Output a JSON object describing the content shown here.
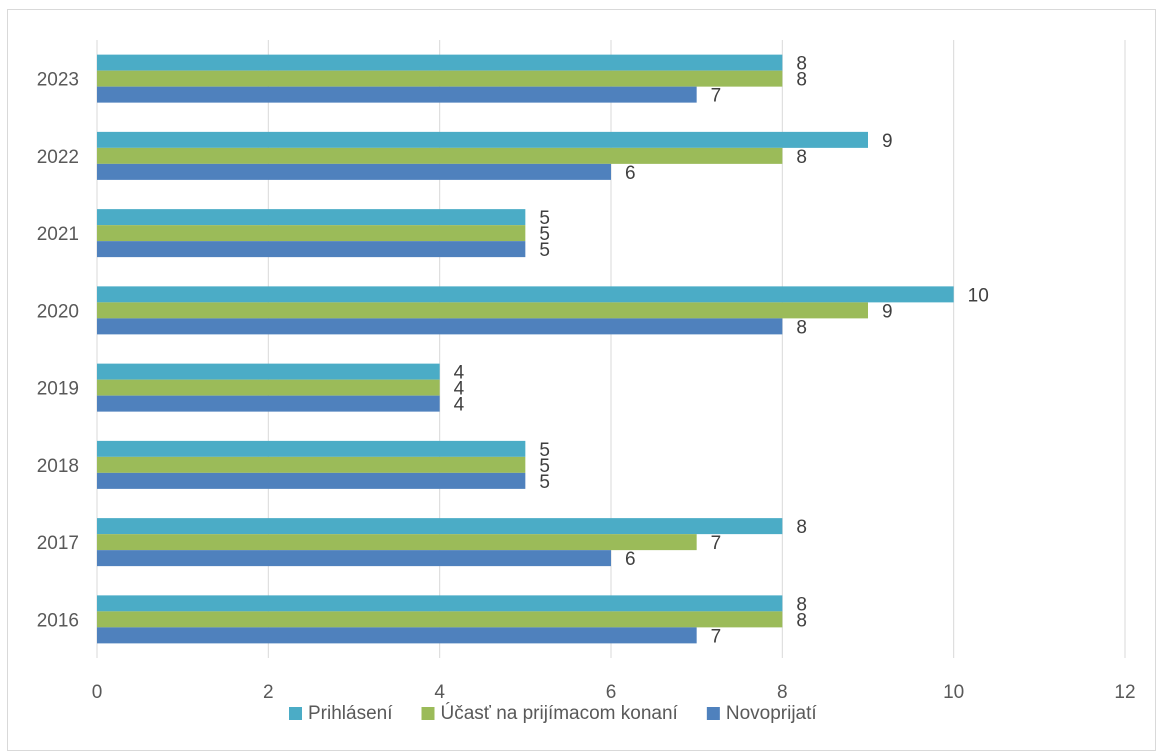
{
  "chart_data": {
    "type": "bar",
    "orientation": "horizontal",
    "categories": [
      "2016",
      "2017",
      "2018",
      "2019",
      "2020",
      "2021",
      "2022",
      "2023"
    ],
    "series": [
      {
        "name": "Prihlásení",
        "color": "#4bacc6",
        "values": [
          8,
          8,
          5,
          4,
          10,
          5,
          9,
          8
        ]
      },
      {
        "name": "Účasť na prijímacom konaní",
        "color": "#9bbb59",
        "values": [
          8,
          7,
          5,
          4,
          9,
          5,
          8,
          8
        ]
      },
      {
        "name": "Novoprijatí",
        "color": "#4f81bd",
        "values": [
          7,
          6,
          5,
          4,
          8,
          5,
          6,
          7
        ]
      }
    ],
    "xticks": [
      "0",
      "2",
      "4",
      "6",
      "8",
      "10",
      "12"
    ],
    "xlim": [
      0,
      12
    ],
    "grid": true,
    "legend": "bottom",
    "data_labels": true,
    "title": "",
    "xlabel": "",
    "ylabel": ""
  }
}
